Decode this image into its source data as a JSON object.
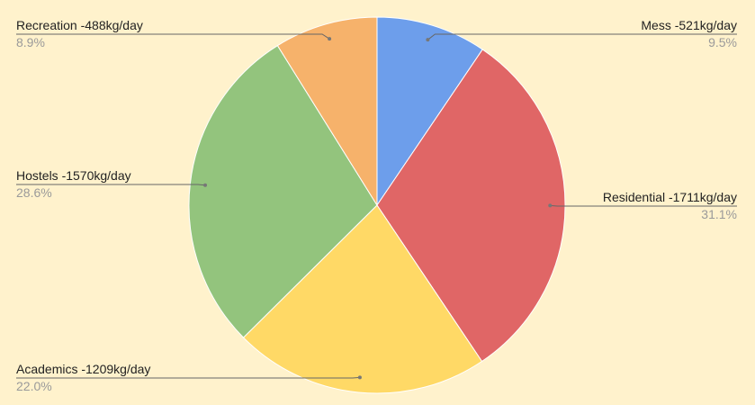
{
  "chart_data": {
    "type": "pie",
    "start": "top",
    "direction": "clockwise",
    "legend": "labels with leader lines",
    "background": "#fff2cc",
    "slices": [
      {
        "label": "Mess -521kg/day",
        "value": 521,
        "percent": "9.5%",
        "color": "#6d9eeb",
        "side": "right"
      },
      {
        "label": "Residential -1711kg/day",
        "value": 1711,
        "percent": "31.1%",
        "color": "#e06666",
        "side": "right"
      },
      {
        "label": "Academics -1209kg/day",
        "value": 1209,
        "percent": "22.0%",
        "color": "#ffd966",
        "side": "left"
      },
      {
        "label": "Hostels -1570kg/day",
        "value": 1570,
        "percent": "28.6%",
        "color": "#93c47d",
        "side": "left"
      },
      {
        "label": "Recreation -488kg/day",
        "value": 488,
        "percent": "8.9%",
        "color": "#f6b26b",
        "side": "left"
      }
    ]
  }
}
